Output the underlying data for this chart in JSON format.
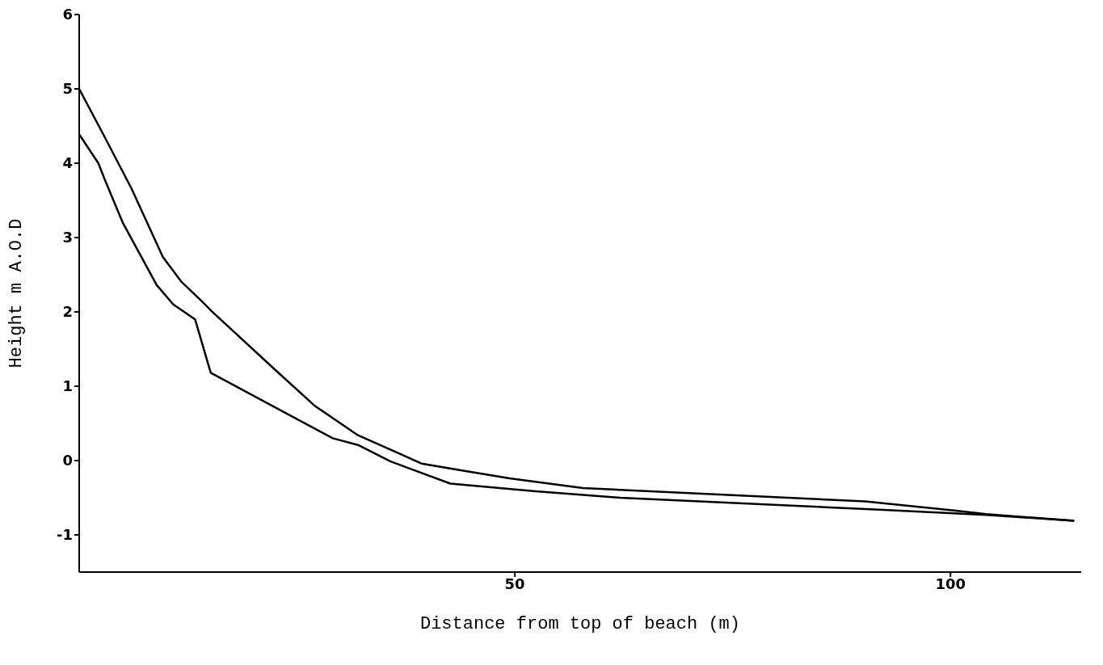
{
  "chart_data": {
    "type": "line",
    "xlabel": "Distance from top of beach  (m)",
    "ylabel": "Height m A.O.D",
    "xlim": [
      0,
      115
    ],
    "xticks": [
      50,
      100
    ],
    "ylim": [
      -1.5,
      6
    ],
    "yticks": [
      -1,
      0,
      1,
      2,
      3,
      4,
      5,
      6
    ],
    "grid": false,
    "legend": false,
    "marker": "none",
    "line_style": "solid",
    "series": [
      {
        "color": "#000000",
        "x": [
          0,
          2.8,
          6.0,
          9.6,
          11.7,
          14.2,
          15.2,
          22.5,
          27.0,
          32.0,
          39.3,
          43.8,
          49.4,
          57.8,
          90.2,
          100.4,
          104.1,
          114.2
        ],
        "values": [
          5.0,
          4.38,
          3.66,
          2.74,
          2.41,
          2.13,
          2.01,
          1.22,
          0.74,
          0.34,
          -0.04,
          -0.13,
          -0.24,
          -0.37,
          -0.55,
          -0.67,
          -0.72,
          -0.81
        ]
      },
      {
        "color": "#000000",
        "x": [
          0,
          2.2,
          2.9,
          5.0,
          8.9,
          10.8,
          13.3,
          15.1,
          29.1,
          32.0,
          35.7,
          42.6,
          52.1,
          62.1,
          91.8,
          104.1,
          114.2
        ],
        "values": [
          4.39,
          4.0,
          3.79,
          3.2,
          2.36,
          2.1,
          1.9,
          1.18,
          0.3,
          0.21,
          -0.01,
          -0.31,
          -0.41,
          -0.5,
          -0.66,
          -0.73,
          -0.81
        ]
      }
    ]
  }
}
